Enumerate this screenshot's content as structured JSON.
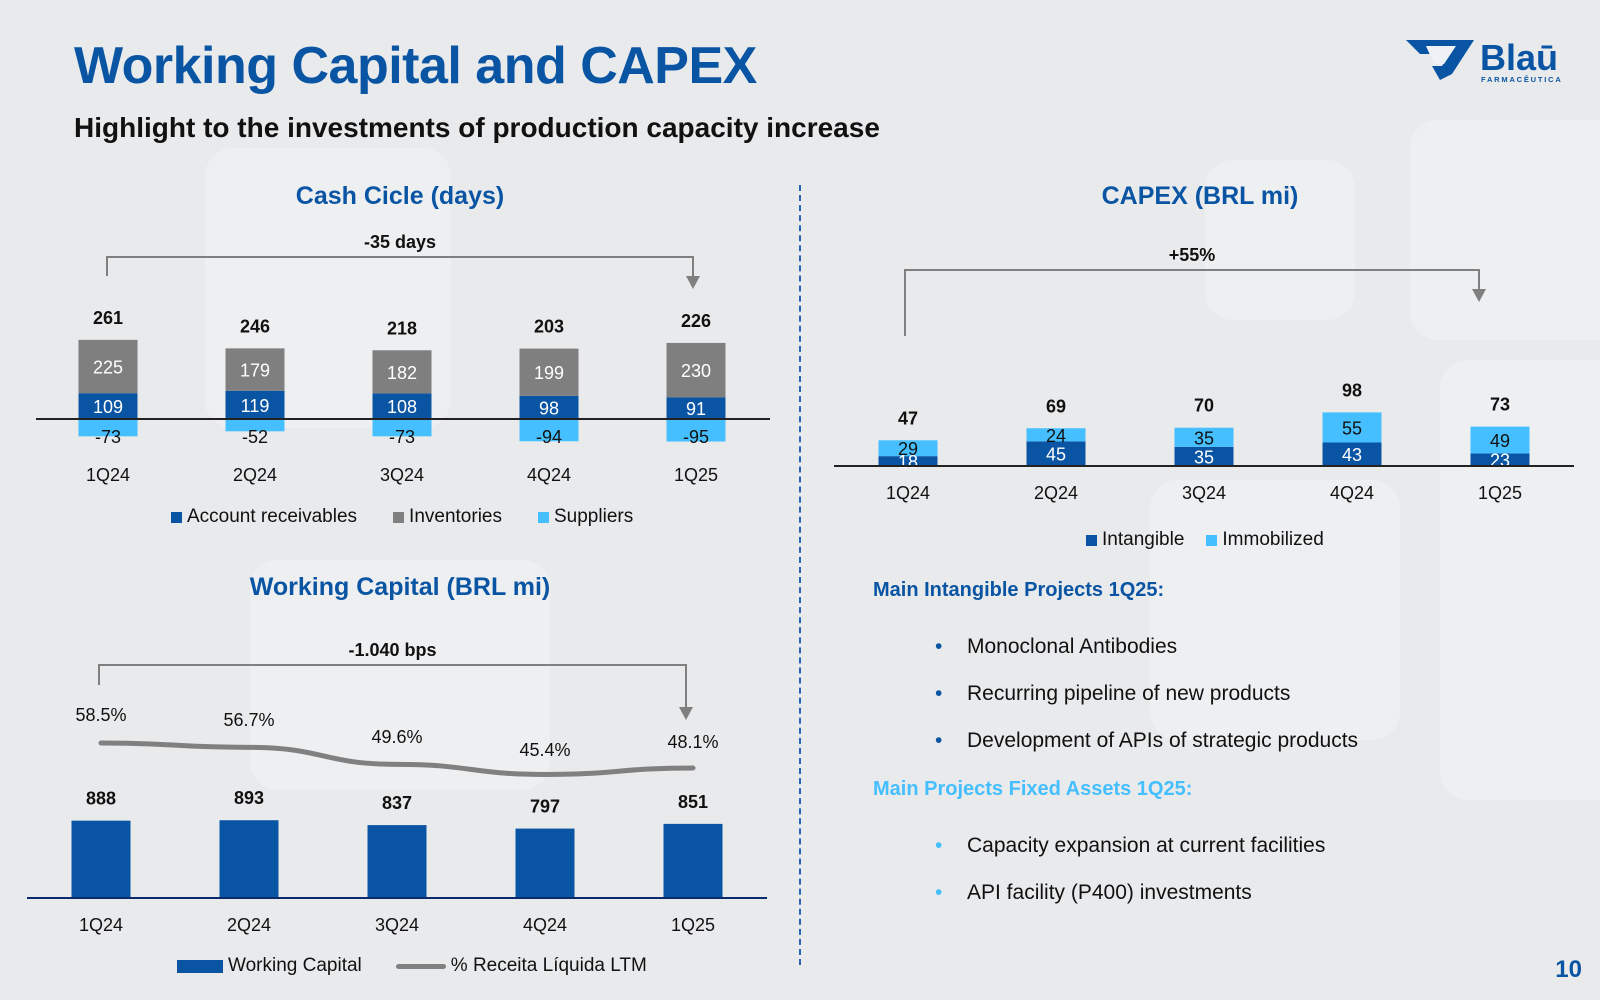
{
  "header": {
    "title": "Working Capital and CAPEX",
    "subtitle": "Highlight to the investments of production capacity increase"
  },
  "logo": {
    "brand": "Blaū",
    "tagline": "FARMACÊUTICA"
  },
  "colors": {
    "title_blue": "#0a55a3",
    "receivables": "#0a55a3",
    "inventories": "#7f7f7f",
    "suppliers": "#45bfff",
    "intangible": "#0a55a3",
    "immobilized": "#45bfff",
    "fixed_heading": "#45bfff",
    "ltm_line": "#808080"
  },
  "chart_data": [
    {
      "id": "cash-cycle",
      "type": "bar",
      "stacked": true,
      "title": "Cash Cicle (days)",
      "categories": [
        "1Q24",
        "2Q24",
        "3Q24",
        "4Q24",
        "1Q25"
      ],
      "series": [
        {
          "name": "Account receivables",
          "values": [
            109,
            119,
            108,
            98,
            91
          ]
        },
        {
          "name": "Inventories",
          "values": [
            225,
            179,
            182,
            199,
            230
          ]
        },
        {
          "name": "Suppliers",
          "values": [
            -73,
            -52,
            -73,
            -94,
            -95
          ]
        }
      ],
      "totals": [
        261,
        246,
        218,
        203,
        226
      ],
      "annotation": "-35 days",
      "legend": [
        "Account receivables",
        "Inventories",
        "Suppliers"
      ]
    },
    {
      "id": "working-capital",
      "type": "bar",
      "title": "Working Capital (BRL mi)",
      "categories": [
        "1Q24",
        "2Q24",
        "3Q24",
        "4Q24",
        "1Q25"
      ],
      "series": [
        {
          "name": "Working Capital",
          "values": [
            888,
            893,
            837,
            797,
            851
          ]
        },
        {
          "name": "% Receita Líquida LTM",
          "type": "line",
          "values": [
            58.5,
            56.7,
            49.6,
            45.4,
            48.1
          ],
          "labels": [
            "58.5%",
            "56.7%",
            "49.6%",
            "45.4%",
            "48.1%"
          ]
        }
      ],
      "annotation": "-1.040 bps",
      "legend": [
        "Working Capital",
        "% Receita Líquida LTM"
      ]
    },
    {
      "id": "capex",
      "type": "bar",
      "stacked": true,
      "title": "CAPEX (BRL mi)",
      "categories": [
        "1Q24",
        "2Q24",
        "3Q24",
        "4Q24",
        "1Q25"
      ],
      "series": [
        {
          "name": "Intangible",
          "values": [
            18,
            45,
            35,
            43,
            23
          ]
        },
        {
          "name": "Immobilized",
          "values": [
            29,
            24,
            35,
            55,
            49
          ]
        }
      ],
      "totals": [
        47,
        69,
        70,
        98,
        73
      ],
      "annotation": "+55%",
      "legend": [
        "Intangible",
        "Immobilized"
      ]
    }
  ],
  "projects": {
    "intangible_heading": "Main Intangible Projects 1Q25:",
    "intangible_items": [
      "Monoclonal Antibodies",
      "Recurring pipeline of new products",
      "Development of APIs of strategic products"
    ],
    "fixed_heading": "Main Projects Fixed Assets 1Q25:",
    "fixed_items": [
      "Capacity expansion at current facilities",
      "API facility (P400) investments"
    ]
  },
  "page_number": "10"
}
